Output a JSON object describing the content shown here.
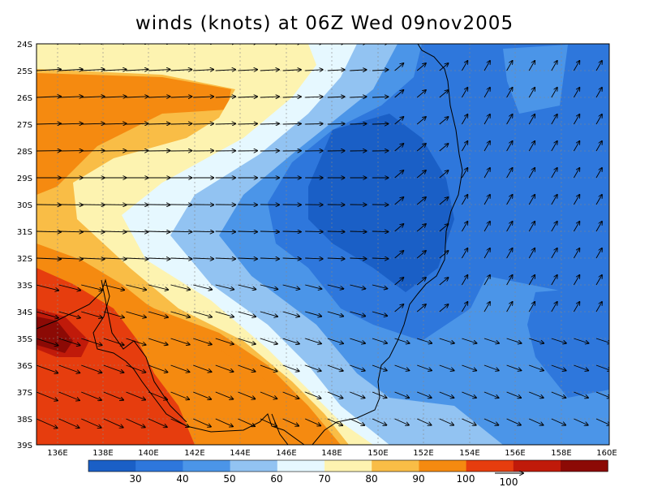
{
  "title": "winds (knots) at 06Z Wed 09nov2005",
  "lat_labels": [
    "24S",
    "25S",
    "26S",
    "27S",
    "28S",
    "29S",
    "30S",
    "31S",
    "32S",
    "33S",
    "34S",
    "35S",
    "36S",
    "37S",
    "38S",
    "39S"
  ],
  "lon_labels": [
    "136E",
    "138E",
    "140E",
    "142E",
    "144E",
    "146E",
    "148E",
    "150E",
    "152E",
    "154E",
    "156E",
    "158E",
    "160E"
  ],
  "colorbar": {
    "labels": [
      "30",
      "40",
      "50",
      "60",
      "70",
      "80",
      "90",
      "100"
    ],
    "colors": [
      "#1a5fc6",
      "#2e77dc",
      "#4b95e8",
      "#92c3f2",
      "#e6f8ff",
      "#fdf3b0",
      "#f9bd46",
      "#f58a10",
      "#e63d0e",
      "#c01a0a",
      "#8c0a05"
    ]
  },
  "reference_vector": {
    "label": "100"
  },
  "map_extent": {
    "lon_min": 135,
    "lon_max": 160,
    "lat_min": -39,
    "lat_max": -24
  },
  "shading_levels": [
    30,
    40,
    50,
    60,
    70,
    80,
    90,
    100
  ]
}
